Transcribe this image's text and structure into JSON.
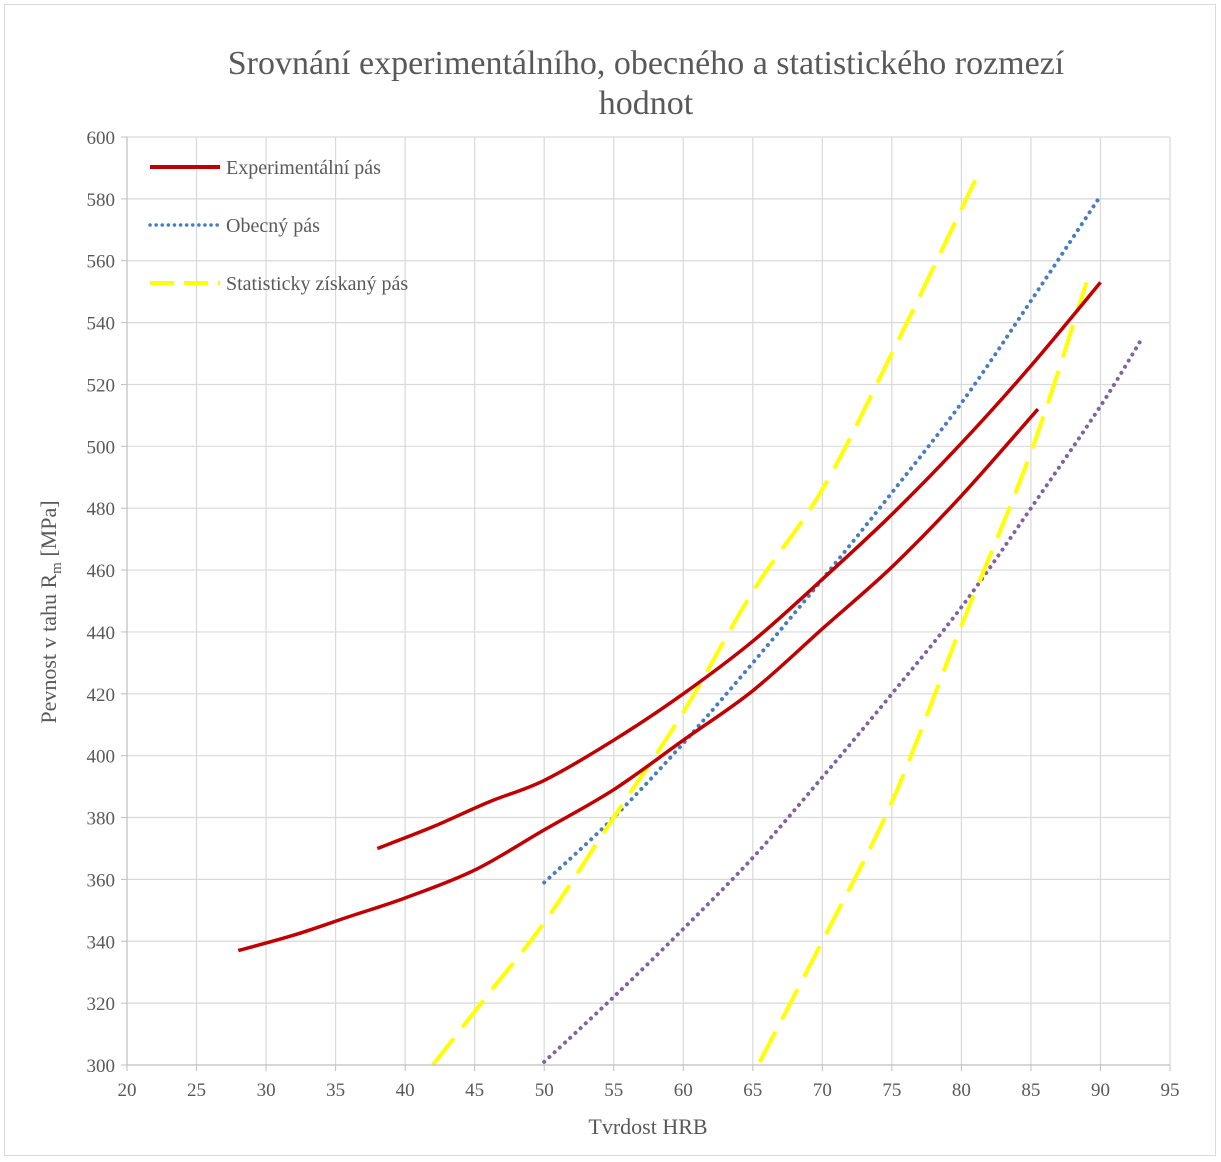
{
  "chart_data": {
    "type": "line",
    "title_line1": "Srovnání experimentálního, obecného a statistického rozmezí",
    "title_line2": "hodnot",
    "xlabel": "Tvrdost HRB",
    "ylabel": "Pevnost v tahu R",
    "ylabel_sub": "m",
    "ylabel_unit": " [MPa]",
    "xlim": [
      20,
      95
    ],
    "ylim": [
      300,
      600
    ],
    "xticks": [
      20,
      25,
      30,
      35,
      40,
      45,
      50,
      55,
      60,
      65,
      70,
      75,
      80,
      85,
      90,
      95
    ],
    "yticks": [
      300,
      320,
      340,
      360,
      380,
      400,
      420,
      440,
      460,
      480,
      500,
      520,
      540,
      560,
      580,
      600
    ],
    "grid": true,
    "legend_position": "top-left",
    "legend": [
      {
        "name": "Experimentální pás",
        "style": "solid",
        "color": "#c00000"
      },
      {
        "name": "Obecný pás",
        "style": "dotted",
        "color": "#4a7ebb"
      },
      {
        "name": "Statisticky získaný pás",
        "style": "dashed",
        "color": "#ffff00"
      }
    ],
    "series": [
      {
        "style": "solid",
        "color": "#c00000",
        "points": [
          [
            38,
            370
          ],
          [
            42,
            377
          ],
          [
            46,
            385
          ],
          [
            50,
            392
          ],
          [
            55,
            405
          ],
          [
            60,
            420
          ],
          [
            65,
            437
          ],
          [
            70,
            457
          ],
          [
            75,
            478
          ],
          [
            80,
            501
          ],
          [
            85,
            526
          ],
          [
            90,
            553
          ]
        ]
      },
      {
        "style": "solid",
        "color": "#c00000",
        "points": [
          [
            28,
            337
          ],
          [
            32,
            342
          ],
          [
            36,
            348
          ],
          [
            40,
            354
          ],
          [
            45,
            363
          ],
          [
            50,
            376
          ],
          [
            55,
            389
          ],
          [
            60,
            405
          ],
          [
            65,
            421
          ],
          [
            70,
            441
          ],
          [
            75,
            461
          ],
          [
            80,
            484
          ],
          [
            85.5,
            512
          ]
        ]
      },
      {
        "style": "dotted",
        "color": "#4a7ebb",
        "points": [
          [
            50,
            359
          ],
          [
            55,
            380
          ],
          [
            60,
            404
          ],
          [
            65,
            430
          ],
          [
            70,
            457
          ],
          [
            75,
            485
          ],
          [
            80,
            514
          ],
          [
            85,
            547
          ],
          [
            90,
            581
          ]
        ]
      },
      {
        "style": "dotted",
        "color": "#8064a2",
        "points": [
          [
            50,
            301
          ],
          [
            55,
            322
          ],
          [
            60,
            344
          ],
          [
            65,
            367
          ],
          [
            70,
            393
          ],
          [
            75,
            420
          ],
          [
            80,
            448
          ],
          [
            85,
            480
          ],
          [
            90,
            513
          ],
          [
            93,
            535
          ]
        ]
      },
      {
        "style": "dashed",
        "color": "#ffff00",
        "points": [
          [
            42,
            300
          ],
          [
            46,
            323
          ],
          [
            50,
            346
          ],
          [
            55,
            380
          ],
          [
            60,
            414
          ],
          [
            65,
            453
          ],
          [
            70,
            486
          ],
          [
            75,
            530
          ],
          [
            81,
            586
          ]
        ]
      },
      {
        "style": "dashed",
        "color": "#ffff00",
        "points": [
          [
            65.5,
            301
          ],
          [
            70,
            340
          ],
          [
            75,
            385
          ],
          [
            80,
            442
          ],
          [
            85,
            498
          ],
          [
            89,
            553
          ]
        ]
      }
    ]
  }
}
